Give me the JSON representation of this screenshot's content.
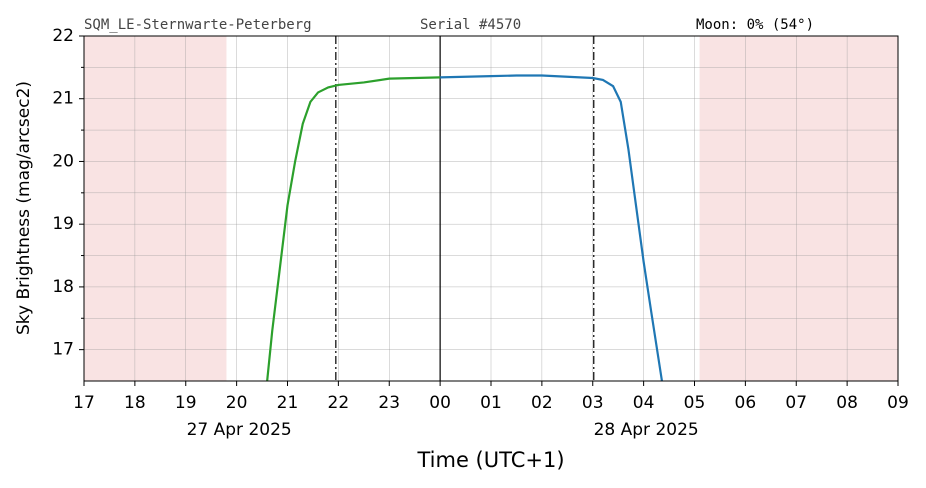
{
  "chart_data": {
    "type": "line",
    "station": "SQM_LE-Sternwarte-Peterberg",
    "serial": "Serial #4570",
    "moon": "Moon: 0% (54°)",
    "ylabel": "Sky Brightness (mag/arcsec2)",
    "xlabel": "Time (UTC+1)",
    "xlim": [
      17,
      33
    ],
    "ylim": [
      16.5,
      22
    ],
    "xticks": [
      17,
      18,
      19,
      20,
      21,
      22,
      23,
      {
        "value": 24,
        "label": "00"
      },
      {
        "value": 25,
        "label": "01"
      },
      {
        "value": 26,
        "label": "02"
      },
      {
        "value": 27,
        "label": "03"
      },
      {
        "value": 28,
        "label": "04"
      },
      {
        "value": 29,
        "label": "05"
      },
      {
        "value": 30,
        "label": "06"
      },
      {
        "value": 31,
        "label": "07"
      },
      {
        "value": 32,
        "label": "08"
      },
      {
        "value": 33,
        "label": "09"
      }
    ],
    "yticks": [
      17,
      18,
      19,
      20,
      21,
      22
    ],
    "yticks_minor": [
      17.5,
      18.5,
      19.5,
      20.5,
      21.5
    ],
    "date_labels": [
      {
        "value": 20,
        "label": "27 Apr 2025"
      },
      {
        "value": 28,
        "label": "28 Apr 2025"
      }
    ],
    "grid": true,
    "shaded": {
      "color": "#f9e3e3",
      "ranges": [
        [
          17,
          19.8
        ],
        [
          29.1,
          33
        ]
      ]
    },
    "vlines": [
      {
        "value": 21.95,
        "style": "dashdot"
      },
      {
        "value": 24,
        "style": "solid"
      },
      {
        "value": 27.02,
        "style": "dashdot"
      }
    ],
    "series": [
      {
        "color": "#2ca02c",
        "x": [
          20.6,
          20.7,
          20.85,
          21.0,
          21.15,
          21.3,
          21.45,
          21.6,
          21.8,
          22.0,
          22.5,
          23.0,
          23.5,
          24.0
        ],
        "values": [
          16.5,
          17.3,
          18.3,
          19.3,
          20.0,
          20.6,
          20.95,
          21.1,
          21.18,
          21.22,
          21.26,
          21.32,
          21.33,
          21.34
        ]
      },
      {
        "color": "#1f77b4",
        "x": [
          24.0,
          24.5,
          25.0,
          25.5,
          26.0,
          26.5,
          27.0,
          27.2,
          27.4,
          27.55,
          27.7,
          27.85,
          28.0,
          28.15,
          28.36
        ],
        "values": [
          21.34,
          21.35,
          21.36,
          21.37,
          21.37,
          21.35,
          21.33,
          21.3,
          21.2,
          20.95,
          20.2,
          19.3,
          18.4,
          17.6,
          16.5
        ]
      }
    ]
  }
}
